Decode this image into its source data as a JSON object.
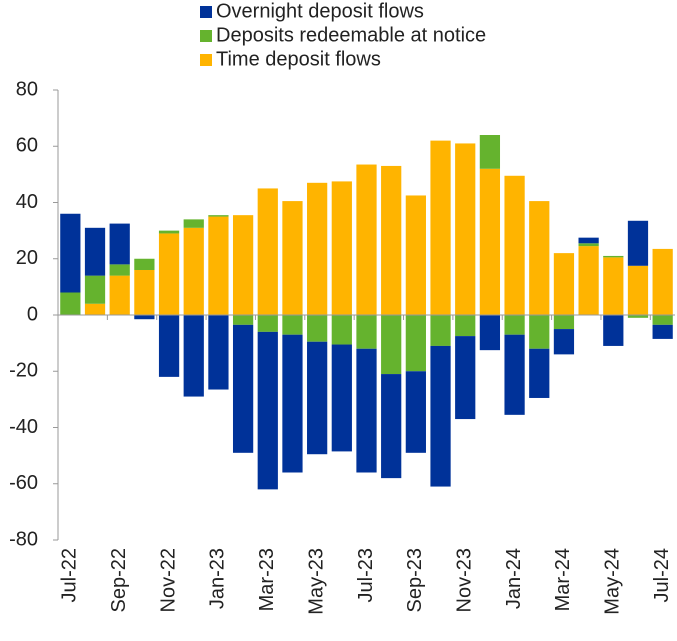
{
  "chart_data": {
    "type": "bar",
    "stacked": true,
    "categories": [
      "Jul-22",
      null,
      "Sep-22",
      null,
      "Nov-22",
      null,
      "Jan-23",
      null,
      "Mar-23",
      null,
      "May-23",
      null,
      "Jul-23",
      null,
      "Sep-23",
      null,
      "Nov-23",
      null,
      "Jan-24",
      null,
      "Mar-24",
      null,
      "May-24",
      null,
      "Jul-24"
    ],
    "series": [
      {
        "name": "Overnight deposit flows",
        "color": "#003299",
        "values": [
          28,
          17,
          14.5,
          -1.5,
          -22,
          -29,
          -26.5,
          -45.5,
          -56,
          -49,
          -40,
          -38,
          -44,
          -37,
          -29,
          -50,
          -29.5,
          -12.5,
          -28.5,
          -17.5,
          -9,
          2,
          -11,
          16,
          -5
        ]
      },
      {
        "name": "Deposits redeemable at notice",
        "color": "#65b32e",
        "values": [
          8,
          10,
          4,
          4,
          1,
          3,
          0.5,
          -3.5,
          -6,
          -7,
          -9.5,
          -10.5,
          -12,
          -21,
          -20,
          -11,
          -7.5,
          12,
          -7,
          -12,
          -5,
          1,
          0.5,
          -1,
          -3.5
        ]
      },
      {
        "name": "Time deposit flows",
        "color": "#ffb400",
        "values": [
          0,
          4,
          14,
          16,
          29,
          31,
          35,
          35.5,
          45,
          40.5,
          47,
          47.5,
          53.5,
          53,
          42.5,
          62,
          61,
          52,
          49.5,
          40.5,
          22,
          24.5,
          20.5,
          17.5,
          23.5
        ]
      }
    ],
    "ylim": [
      -80,
      80
    ],
    "yticks": [
      -80,
      -60,
      -40,
      -20,
      0,
      20,
      40,
      60,
      80
    ],
    "grid": false
  }
}
